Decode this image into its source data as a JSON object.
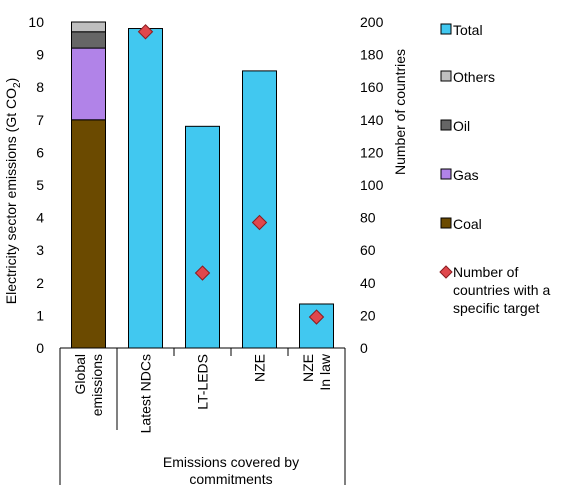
{
  "chart_data": {
    "type": "bar",
    "ylabel_left": "Electricity sector emissions (Gt CO₂)",
    "ylabel_right": "Number of countries",
    "ylim_left": [
      0,
      10
    ],
    "ylim_right": [
      0,
      200
    ],
    "left_ticks": [
      "0",
      "1",
      "2",
      "3",
      "4",
      "5",
      "6",
      "7",
      "8",
      "9",
      "10"
    ],
    "right_ticks": [
      "0",
      "20",
      "40",
      "60",
      "80",
      "100",
      "120",
      "140",
      "160",
      "180",
      "200"
    ],
    "categories": [
      {
        "lines": [
          "Global",
          "emissions"
        ]
      },
      {
        "lines": [
          "Latest NDCs"
        ]
      },
      {
        "lines": [
          "LT-LEDS"
        ]
      },
      {
        "lines": [
          "NZE"
        ]
      },
      {
        "lines": [
          "NZE",
          "In law"
        ]
      }
    ],
    "group_label": [
      "Emissions covered by",
      "commitments"
    ],
    "stacked_bar": {
      "category_index": 0,
      "segments": [
        {
          "name": "Coal",
          "value": 7.0,
          "color": "#6b4a00"
        },
        {
          "name": "Gas",
          "value": 2.2,
          "color": "#b183e8"
        },
        {
          "name": "Oil",
          "value": 0.5,
          "color": "#666666"
        },
        {
          "name": "Others",
          "value": 0.3,
          "color": "#bfbfbf"
        }
      ]
    },
    "total_series": {
      "name": "Total",
      "color": "#41c8f0",
      "values": [
        null,
        9.8,
        6.8,
        8.5,
        1.35
      ]
    },
    "marker_series": {
      "name": [
        "Number of",
        "countries with a",
        "specific target"
      ],
      "axis": "right",
      "color": "#e0474c",
      "values": [
        null,
        194,
        46,
        77,
        19
      ]
    },
    "legend": [
      {
        "label": [
          "Total"
        ],
        "swatch": "square",
        "color": "#41c8f0"
      },
      {
        "label": [
          "Others"
        ],
        "swatch": "square",
        "color": "#bfbfbf"
      },
      {
        "label": [
          "Oil"
        ],
        "swatch": "square",
        "color": "#666666"
      },
      {
        "label": [
          "Gas"
        ],
        "swatch": "square",
        "color": "#b183e8"
      },
      {
        "label": [
          "Coal"
        ],
        "swatch": "square",
        "color": "#6b4a00"
      },
      {
        "label": [
          "Number of",
          "countries with a",
          "specific target"
        ],
        "swatch": "diamond",
        "color": "#e0474c"
      }
    ],
    "legend_position": "right",
    "grid": false
  }
}
